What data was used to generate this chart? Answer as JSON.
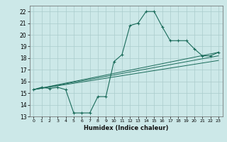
{
  "xlabel": "Humidex (Indice chaleur)",
  "background_color": "#cce8e8",
  "grid_color": "#aacccc",
  "line_color": "#1a6b5a",
  "xlim": [
    -0.5,
    23.5
  ],
  "ylim": [
    13,
    22.5
  ],
  "yticks": [
    13,
    14,
    15,
    16,
    17,
    18,
    19,
    20,
    21,
    22
  ],
  "xticks": [
    0,
    1,
    2,
    3,
    4,
    5,
    6,
    7,
    8,
    9,
    10,
    11,
    12,
    13,
    14,
    15,
    16,
    17,
    18,
    19,
    20,
    21,
    22,
    23
  ],
  "line1_x": [
    0,
    1,
    2,
    3,
    4,
    5,
    6,
    7,
    8,
    9,
    10,
    11,
    12,
    13,
    14,
    15,
    16,
    17,
    18,
    19,
    20,
    21,
    22,
    23
  ],
  "line1_y": [
    15.3,
    15.5,
    15.4,
    15.5,
    15.3,
    13.3,
    13.3,
    13.3,
    14.7,
    14.7,
    17.7,
    18.3,
    20.8,
    21.0,
    22.0,
    22.0,
    20.7,
    19.5,
    19.5,
    19.5,
    18.8,
    18.2,
    18.2,
    18.5
  ],
  "line2_x": [
    0,
    23
  ],
  "line2_y": [
    15.3,
    18.5
  ],
  "line3_x": [
    0,
    23
  ],
  "line3_y": [
    15.3,
    18.2
  ],
  "line4_x": [
    0,
    23
  ],
  "line4_y": [
    15.3,
    17.8
  ],
  "xlabel_fontsize": 6.0,
  "tick_fontsize": 5.5
}
